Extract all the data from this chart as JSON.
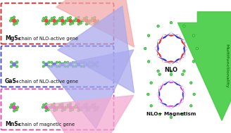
{
  "bg_color": "#ffffff",
  "box1_color": "#cc2222",
  "box2_color": "#4444bb",
  "box3_color": "#dd44aa",
  "label1": "MgS₆",
  "label2": "GaS₄",
  "label3": "MnS₆",
  "chain1": "chain of NLO-active gene",
  "chain2": "chain of NLO-active gene",
  "chain3": "chain of magnetic gene",
  "nlo_label": "NLO",
  "nlomag_label": "NLO+ Magnetism",
  "multifunc_label": "Multifunctionality",
  "arrow1_color": "#f4aaaa",
  "arrow2_color": "#aaaaee",
  "arrow3_color": "#f4aad0",
  "green_color": "#44cc44",
  "red_tri": "#dd2222",
  "blue_tri": "#2222cc",
  "mag_tri": "#dd22cc",
  "ligand_color": "#55dd55",
  "ligand_edge": "#229922"
}
